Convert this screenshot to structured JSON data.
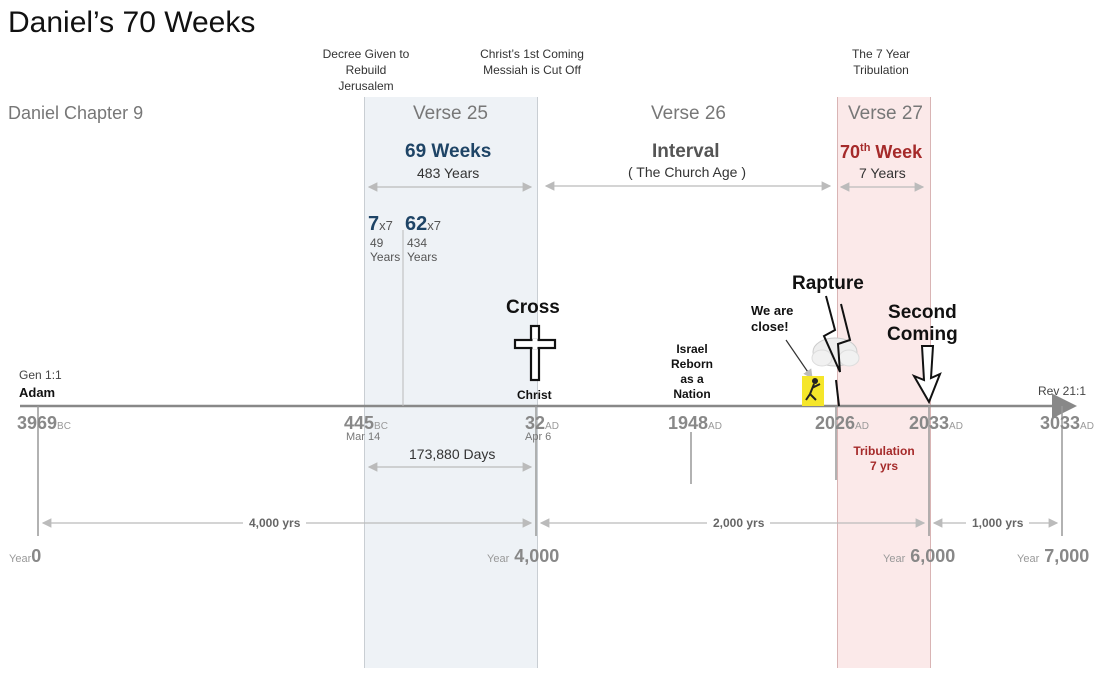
{
  "title": "Daniel’s 70 Weeks",
  "chapter": "Daniel Chapter 9",
  "header_notes": {
    "decree": "Decree Given to Rebuild Jerusalem",
    "christ": "Christ’s 1st Coming Messiah is Cut Off",
    "tribulation": "The 7 Year Tribulation"
  },
  "verses": {
    "v25": "Verse 25",
    "v26": "Verse 26",
    "v27": "Verse 27"
  },
  "segments": {
    "weeks69": {
      "label": "69 Weeks",
      "years": "483 Years"
    },
    "interval": {
      "label": "Interval",
      "sub": "( The Church Age )"
    },
    "week70": {
      "label": "70",
      "sup": "th",
      "word": " Week",
      "years": "7 Years"
    }
  },
  "multipliers": {
    "m7": {
      "n": "7",
      "x": "x7",
      "y1": "49",
      "y2": "Years"
    },
    "m62": {
      "n": "62",
      "x": "x7",
      "y1": "434",
      "y2": "Years"
    }
  },
  "events": {
    "cross": "Cross",
    "christ": "Christ",
    "israel": [
      "Israel",
      "Reborn",
      "as a",
      "Nation"
    ],
    "we_are": [
      "We are",
      "close!"
    ],
    "rapture": "Rapture",
    "second": [
      "Second",
      "Coming"
    ]
  },
  "axis_start": {
    "ref": "Gen 1:1",
    "name": "Adam"
  },
  "axis_end": {
    "ref": "Rev 21:1"
  },
  "dates": {
    "d3969": {
      "n": "3969",
      "era": "BC"
    },
    "d445": {
      "n": "445",
      "era": "BC",
      "sub": "Mar 14"
    },
    "d32": {
      "n": "32",
      "era": "AD",
      "sub": "Apr 6"
    },
    "d1948": {
      "n": "1948",
      "era": "AD"
    },
    "d2026": {
      "n": "2026",
      "era": "AD"
    },
    "d2033": {
      "n": "2033",
      "era": "AD"
    },
    "d3033": {
      "n": "3033",
      "era": "AD"
    }
  },
  "days": "173,880 Days",
  "tribulation": [
    "Tribulation",
    "7 yrs"
  ],
  "spans": {
    "s4000": "4,000 yrs",
    "s2000": "2,000 yrs",
    "s1000": "1,000 yrs"
  },
  "bottom_years": {
    "label": "Year",
    "y0": "0",
    "y4000": "4,000",
    "y6000": "6,000",
    "y7000": "7,000"
  },
  "colors": {
    "blue_band": "#eef2f6",
    "pink_band": "#fbe9e9",
    "blue_text": "#1e4466",
    "red_text": "#a52a2a",
    "axis": "#888888",
    "figure_yellow": "#f5e62a"
  },
  "icons": [
    "cross-icon",
    "rapture-arrow-icon",
    "second-coming-arrow-icon",
    "person-figure-icon"
  ]
}
